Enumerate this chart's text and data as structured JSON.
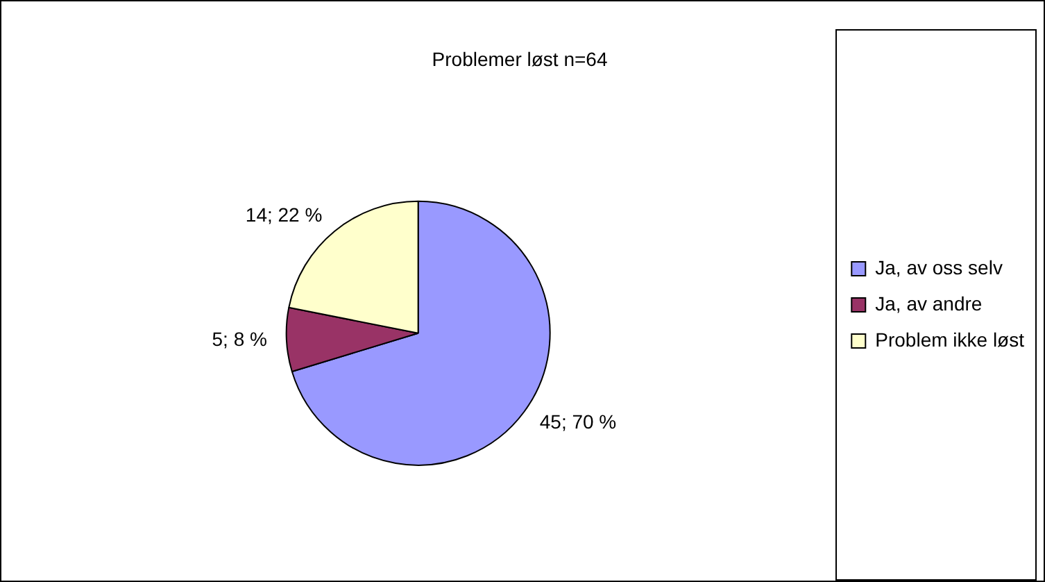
{
  "chart_data": {
    "type": "pie",
    "title": "Problemer løst n=64",
    "categories": [
      "Ja, av oss selv",
      "Ja, av andre",
      "Problem ikke løst"
    ],
    "values": [
      45,
      5,
      14
    ],
    "colors": [
      "#9999ff",
      "#993366",
      "#ffffcc"
    ],
    "value_labels": [
      "45; 70 %",
      "5; 8 %",
      "14; 22 %"
    ],
    "legend": "right"
  }
}
